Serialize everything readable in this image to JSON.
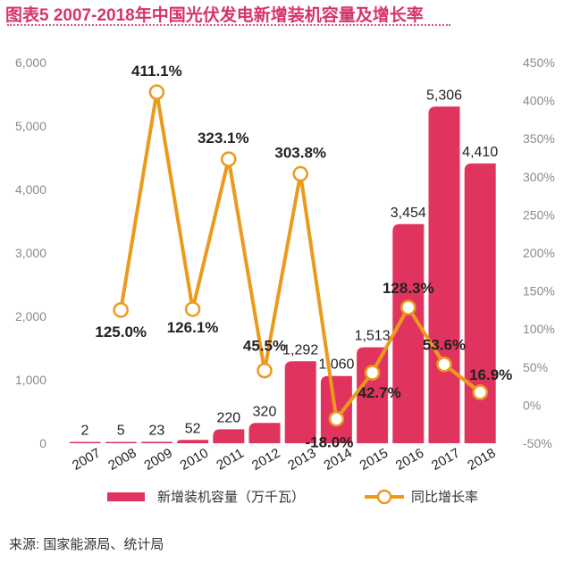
{
  "title": "图表5 2007-2018年中国光伏发电新增装机容量及增长率",
  "source": "来源: 国家能源局、统计局",
  "colors": {
    "bar": "#e0345e",
    "line": "#ec9a1e",
    "title": "#d6336c",
    "axis_text": "#8a8a8a"
  },
  "chart_data": {
    "type": "bar+line",
    "title": "图表5 2007-2018年中国光伏发电新增装机容量及增长率",
    "categories": [
      "2007",
      "2008",
      "2009",
      "2010",
      "2011",
      "2012",
      "2013",
      "2014",
      "2015",
      "2016",
      "2017",
      "2018"
    ],
    "series": [
      {
        "name": "新增装机容量（万千瓦）",
        "type": "bar",
        "axis": "left",
        "values": [
          2,
          5,
          23,
          52,
          220,
          320,
          1292,
          1060,
          1513,
          3454,
          5306,
          4410
        ],
        "labels": [
          "2",
          "5",
          "23",
          "52",
          "220",
          "320",
          "1,292",
          "1,060",
          "1,513",
          "3,454",
          "5,306",
          "4,410"
        ]
      },
      {
        "name": "同比增长率",
        "type": "line",
        "axis": "right",
        "values": [
          null,
          125.0,
          411.1,
          126.1,
          323.1,
          45.5,
          303.8,
          -18.0,
          42.7,
          128.3,
          53.6,
          16.9
        ],
        "labels": [
          "",
          "125.0%",
          "411.1%",
          "126.1%",
          "323.1%",
          "45.5%",
          "303.8%",
          "-18.0%",
          "42.7%",
          "128.3%",
          "53.6%",
          "16.9%"
        ]
      }
    ],
    "left_axis": {
      "ylim": [
        0,
        6000
      ],
      "ticks": [
        "0",
        "1,000",
        "2,000",
        "3,000",
        "4,000",
        "5,000",
        "6,000"
      ]
    },
    "right_axis": {
      "ylim": [
        -50,
        450
      ],
      "ticks": [
        "-50%",
        "0%",
        "50%",
        "100%",
        "150%",
        "200%",
        "250%",
        "300%",
        "350%",
        "400%",
        "450%"
      ]
    },
    "grid": false,
    "legend_position": "bottom"
  },
  "legend": {
    "bar_label": "新增装机容量（万千瓦）",
    "line_label": "同比增长率"
  }
}
